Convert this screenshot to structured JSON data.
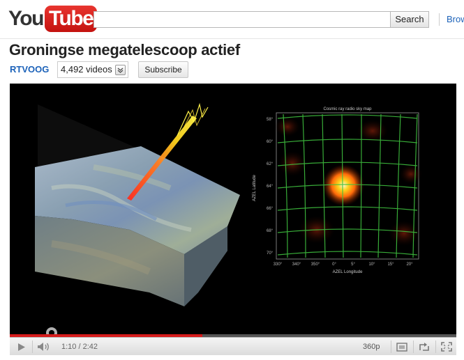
{
  "header": {
    "logo_you": "You",
    "logo_tube": "Tube",
    "search_value": "",
    "search_placeholder": "",
    "search_button": "Search",
    "browse_link": "Browse"
  },
  "video": {
    "title": "Groningse megatelescoop actief",
    "channel": "RTVOOG",
    "video_count": "4,492 videos",
    "subscribe_label": "Subscribe"
  },
  "player": {
    "time": "1:10 / 2:42",
    "quality": "360p",
    "progress_fraction": 0.432,
    "colors": {
      "progress": "#d61b1b",
      "background": "#000000"
    },
    "sky_map": {
      "title": "Cosmic ray radio sky map",
      "y_label": "AZEL Latitude",
      "x_label": "AZEL Longitude",
      "y_ticks": [
        "58°",
        "60°",
        "62°",
        "64°",
        "66°",
        "68°",
        "70°"
      ],
      "x_ticks": [
        "330°",
        "340°",
        "350°",
        "0°",
        "5°",
        "10°",
        "15°",
        "20°"
      ]
    }
  },
  "icons": [
    "play-icon",
    "volume-icon",
    "window-icon",
    "popout-icon",
    "fullscreen-icon",
    "chevron-down-icon"
  ]
}
